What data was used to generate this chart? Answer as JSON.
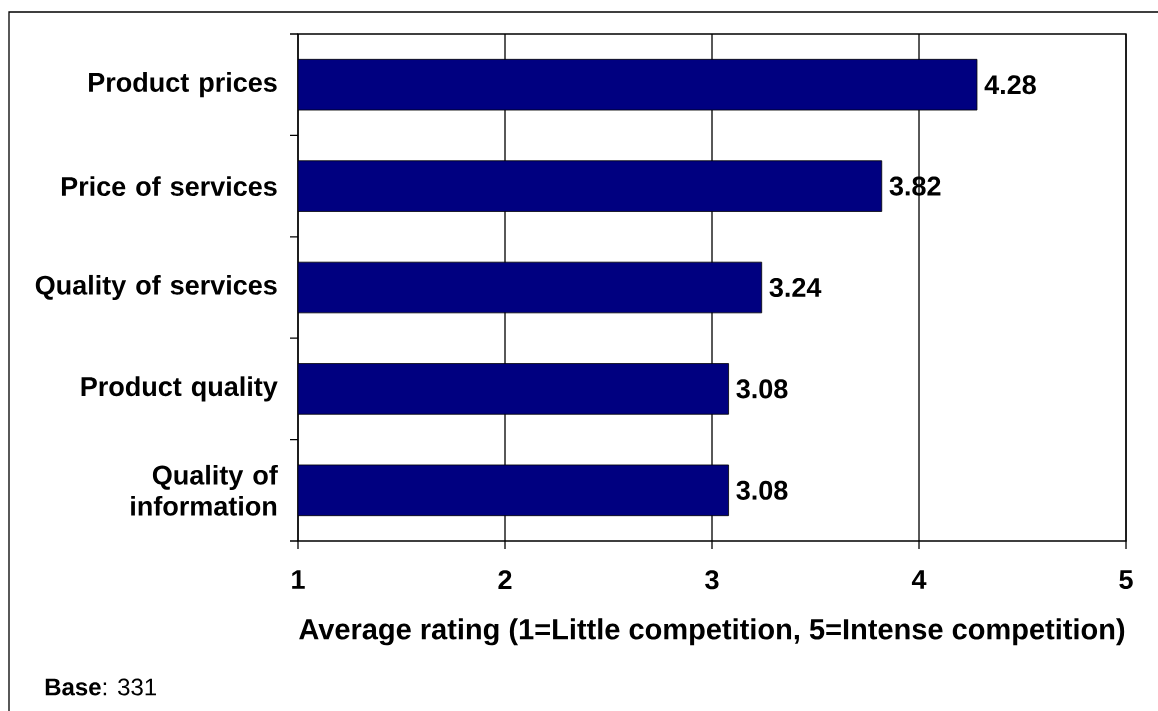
{
  "chart_data": {
    "type": "bar",
    "orientation": "horizontal",
    "categories": [
      "Product prices",
      "Price of services",
      "Quality of services",
      "Product quality",
      "Quality of information"
    ],
    "values": [
      4.28,
      3.82,
      3.24,
      3.08,
      3.08
    ],
    "color": "#000080",
    "xlim": [
      1,
      5
    ],
    "xticks": [
      1,
      2,
      3,
      4,
      5
    ],
    "xlabel": "Average rating (1=Little competition, 5=Intense competition)",
    "data_labels": true,
    "grid": "x",
    "annotations": [
      "**Base**: 331"
    ]
  }
}
